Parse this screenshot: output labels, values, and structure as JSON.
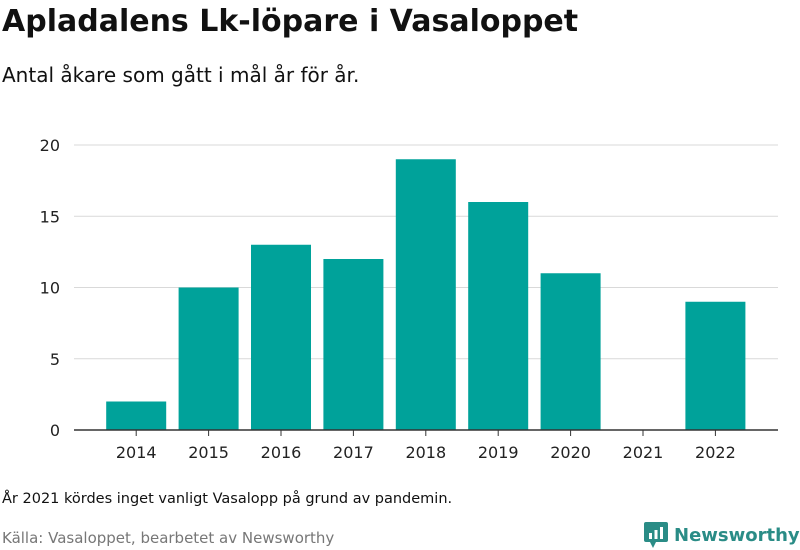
{
  "title": "Apladalens Lk-löpare i Vasaloppet",
  "subtitle": "Antal åkare som gått i mål år för år.",
  "note": "År 2021 kördes inget vanligt Vasalopp på grund av pandemin.",
  "source": "Källa: Vasaloppet, bearbetet av Newsworthy",
  "logo": {
    "text": "Newsworthy",
    "color": "#2a8c86"
  },
  "colors": {
    "bar": "#00a29a",
    "grid": "#d9d9d9",
    "axis": "#333333"
  },
  "chart_data": {
    "type": "bar",
    "title": "Apladalens Lk-löpare i Vasaloppet",
    "subtitle": "Antal åkare som gått i mål år för år.",
    "xlabel": "",
    "ylabel": "",
    "categories": [
      "2014",
      "2015",
      "2016",
      "2017",
      "2018",
      "2019",
      "2020",
      "2021",
      "2022"
    ],
    "values": [
      2,
      10,
      13,
      12,
      19,
      16,
      11,
      0,
      9
    ],
    "ylim": [
      0,
      20
    ],
    "yticks": [
      0,
      5,
      10,
      15,
      20
    ],
    "grid": true
  }
}
